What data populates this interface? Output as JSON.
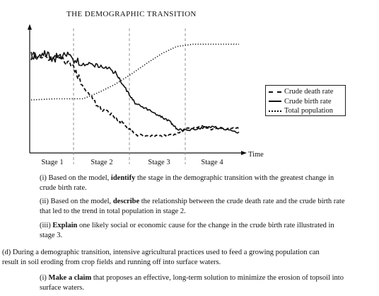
{
  "chart_data": {
    "type": "line",
    "title": "THE DEMOGRAPHIC TRANSITION",
    "xlabel": "Time",
    "ylabel": "",
    "stages": [
      "Stage 1",
      "Stage 2",
      "Stage 3",
      "Stage 4"
    ],
    "legend": [
      "Crude death rate",
      "Crude birth rate",
      "Total population"
    ],
    "legend_position": "right",
    "series": [
      {
        "name": "Crude death rate",
        "style": "dashed",
        "points": [
          [
            0.0,
            0.8
          ],
          [
            0.12,
            0.78
          ],
          [
            0.2,
            0.72
          ],
          [
            0.25,
            0.55
          ],
          [
            0.32,
            0.36
          ],
          [
            0.38,
            0.3
          ],
          [
            0.44,
            0.22
          ],
          [
            0.5,
            0.12
          ],
          [
            0.56,
            0.11
          ],
          [
            0.63,
            0.11
          ],
          [
            0.69,
            0.12
          ],
          [
            0.75,
            0.17
          ],
          [
            0.82,
            0.19
          ],
          [
            0.86,
            0.17
          ],
          [
            0.93,
            0.17
          ],
          [
            1.0,
            0.18
          ]
        ]
      },
      {
        "name": "Crude birth rate",
        "style": "solid",
        "points": [
          [
            0.0,
            0.8
          ],
          [
            0.06,
            0.82
          ],
          [
            0.11,
            0.78
          ],
          [
            0.17,
            0.8
          ],
          [
            0.23,
            0.74
          ],
          [
            0.3,
            0.72
          ],
          [
            0.36,
            0.7
          ],
          [
            0.41,
            0.65
          ],
          [
            0.46,
            0.5
          ],
          [
            0.5,
            0.39
          ],
          [
            0.56,
            0.34
          ],
          [
            0.62,
            0.28
          ],
          [
            0.67,
            0.23
          ],
          [
            0.7,
            0.17
          ],
          [
            0.75,
            0.16
          ],
          [
            0.82,
            0.18
          ],
          [
            0.87,
            0.19
          ],
          [
            0.93,
            0.17
          ],
          [
            1.0,
            0.14
          ]
        ]
      },
      {
        "name": "Total population",
        "style": "dotted",
        "points": [
          [
            0.0,
            0.42
          ],
          [
            0.12,
            0.43
          ],
          [
            0.25,
            0.43
          ],
          [
            0.32,
            0.48
          ],
          [
            0.4,
            0.55
          ],
          [
            0.48,
            0.64
          ],
          [
            0.56,
            0.74
          ],
          [
            0.63,
            0.82
          ],
          [
            0.7,
            0.88
          ],
          [
            0.78,
            0.9
          ],
          [
            0.88,
            0.9
          ],
          [
            1.0,
            0.9
          ]
        ]
      }
    ]
  },
  "questions": {
    "i_pre": "(i) Based on the model, ",
    "i_bold": "identify",
    "i_line1": " the stage in the demographic transition with the greatest change in",
    "i_line2": "crude birth rate.",
    "ii_pre": "(ii) Based on the model, ",
    "ii_bold": "describe",
    "ii_line1": " the relationship between the crude death rate and the crude birth rate",
    "ii_line2": "that led to the trend in total population in stage 2.",
    "iii_pre": "(iii) ",
    "iii_bold": "Explain",
    "iii_line1": " one likely social or economic cause for the change in the crude birth rate illustrated in",
    "iii_line2": "stage 3.",
    "d_line1": "(d) During a demographic transition, intensive agricultural practices used to feed a growing population can",
    "d_line2": "result in soil eroding from crop fields and running off into surface waters.",
    "di_pre": "(i) ",
    "di_bold": "Make a claim",
    "di_line1": " that proposes an effective, long-term solution to minimize the erosion of topsoil into",
    "di_line2": "surface waters."
  }
}
